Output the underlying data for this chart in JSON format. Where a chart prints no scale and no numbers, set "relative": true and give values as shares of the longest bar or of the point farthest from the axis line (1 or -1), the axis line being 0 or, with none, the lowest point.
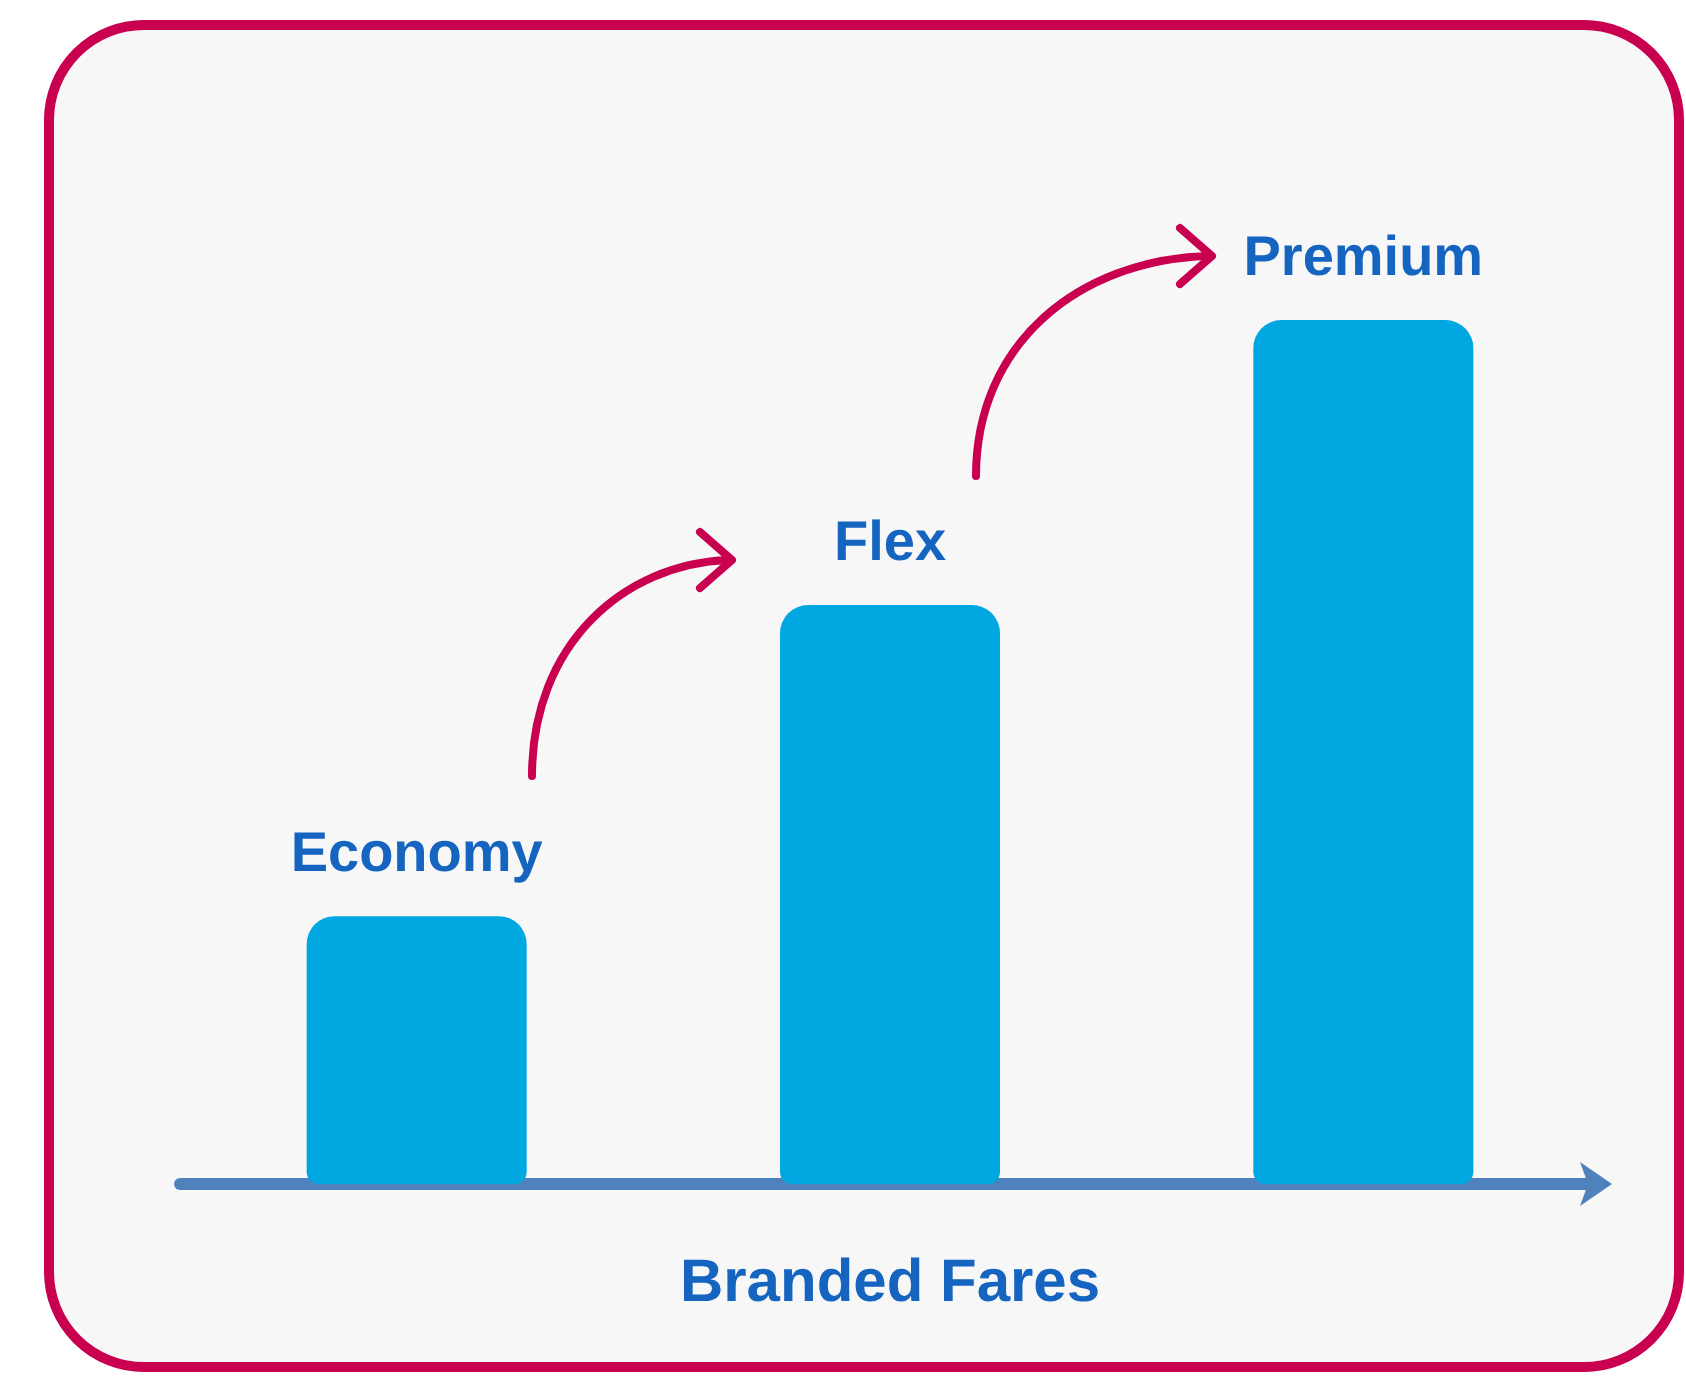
{
  "chart_data": {
    "type": "bar",
    "categories": [
      "Economy",
      "Flex",
      "Premium"
    ],
    "values": [
      0.31,
      0.67,
      1
    ],
    "color": "#00a7e1",
    "xlabel": "Branded Fares",
    "relative": true
  }
}
